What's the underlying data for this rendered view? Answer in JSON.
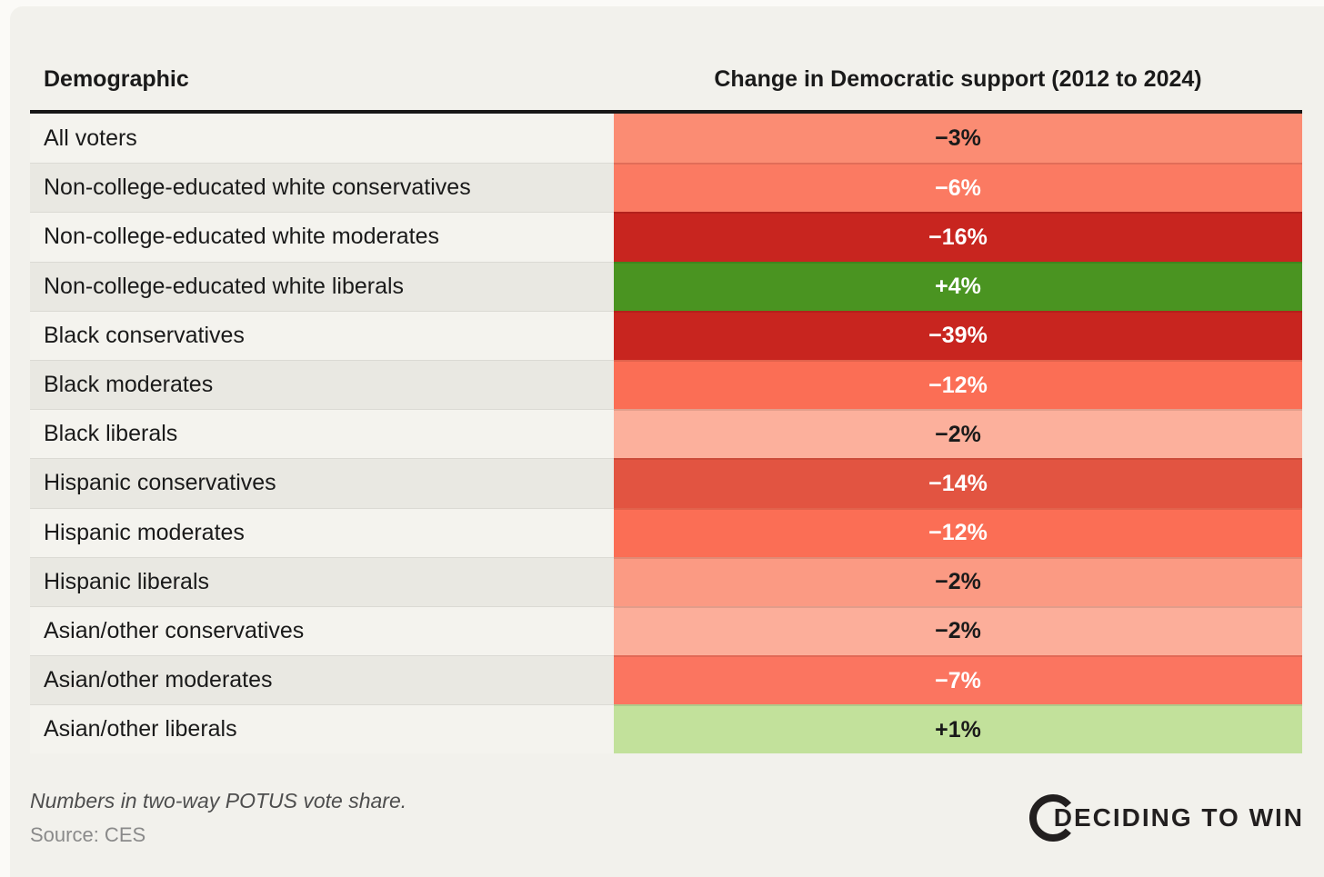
{
  "page": {
    "background": "#FBFAF7",
    "card_background": "#F2F1EC"
  },
  "table": {
    "col1_header": "Demographic",
    "col2_header": "Change in Democratic support (2012 to 2024)",
    "rows": [
      {
        "label": "All voters",
        "value": "−3%",
        "bg": "#FB8C73",
        "text_color": "#1A1A1A"
      },
      {
        "label": "Non-college-educated white conservatives",
        "value": "−6%",
        "bg": "#FB7A62",
        "text_color": "#FFFFFF"
      },
      {
        "label": "Non-college-educated white moderates",
        "value": "−16%",
        "bg": "#C8251F",
        "text_color": "#FFFFFF"
      },
      {
        "label": "Non-college-educated white liberals",
        "value": "+4%",
        "bg": "#4A9421",
        "text_color": "#FFFFFF"
      },
      {
        "label": "Black conservatives",
        "value": "−39%",
        "bg": "#C8251F",
        "text_color": "#FFFFFF"
      },
      {
        "label": "Black moderates",
        "value": "−12%",
        "bg": "#FB6E55",
        "text_color": "#FFFFFF"
      },
      {
        "label": "Black liberals",
        "value": "−2%",
        "bg": "#FCB09C",
        "text_color": "#1A1A1A"
      },
      {
        "label": "Hispanic conservatives",
        "value": "−14%",
        "bg": "#E25441",
        "text_color": "#FFFFFF"
      },
      {
        "label": "Hispanic moderates",
        "value": "−12%",
        "bg": "#FB6E55",
        "text_color": "#FFFFFF"
      },
      {
        "label": "Hispanic liberals",
        "value": "−2%",
        "bg": "#FB9A83",
        "text_color": "#1A1A1A"
      },
      {
        "label": "Asian/other conservatives",
        "value": "−2%",
        "bg": "#FCAE9A",
        "text_color": "#1A1A1A"
      },
      {
        "label": "Asian/other moderates",
        "value": "−7%",
        "bg": "#FB7560",
        "text_color": "#FFFFFF"
      },
      {
        "label": "Asian/other liberals",
        "value": "+1%",
        "bg": "#C2E19B",
        "text_color": "#1A1A1A"
      }
    ]
  },
  "footer": {
    "note": "Numbers in two-way POTUS vote share.",
    "source": "Source: CES",
    "logo_text": "DECIDING TO WIN"
  },
  "chart_data": {
    "type": "heatmap",
    "title": "Change in Democratic support (2012 to 2024)",
    "columns": [
      "Demographic",
      "Change in Democratic support (2012 to 2024)"
    ],
    "categories": [
      "All voters",
      "Non-college-educated white conservatives",
      "Non-college-educated white moderates",
      "Non-college-educated white liberals",
      "Black conservatives",
      "Black moderates",
      "Black liberals",
      "Hispanic conservatives",
      "Hispanic moderates",
      "Hispanic liberals",
      "Asian/other conservatives",
      "Asian/other moderates",
      "Asian/other liberals"
    ],
    "values_pct": [
      -3,
      -6,
      -16,
      4,
      -39,
      -12,
      -2,
      -14,
      -12,
      -2,
      -2,
      -7,
      1
    ],
    "note": "Numbers in two-way POTUS vote share.",
    "source": "Source: CES",
    "layout": {
      "legend": false,
      "grid": false,
      "value_labels": "centered in colored cells"
    },
    "color_scale": {
      "strong_negative": "#C8251F",
      "weak_negative": "#FCB09C",
      "strong_positive": "#4A9421",
      "weak_positive": "#C2E19B"
    }
  }
}
